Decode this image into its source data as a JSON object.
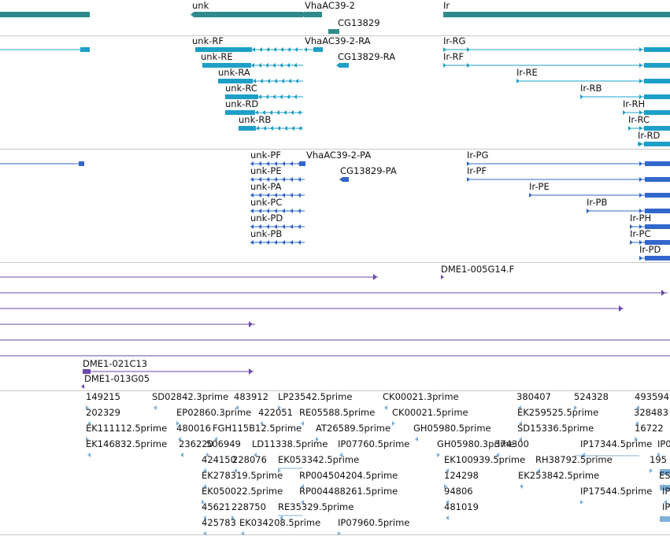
{
  "colors": {
    "gene": "#2e8b8b",
    "mrna": "#1e9fc8",
    "protein": "#3366cc",
    "clone": "#6a4aa8",
    "est": "#7fb0d8",
    "separator": "#c8c8c8"
  },
  "genes": [
    {
      "name": "unk"
    },
    {
      "name": "VhaAC39-2"
    },
    {
      "name": "CG13829"
    },
    {
      "name": "Ir"
    }
  ],
  "transcripts": [
    "unk-RF",
    "unk-RE",
    "unk-RA",
    "unk-RC",
    "unk-RD",
    "unk-RB",
    "VhaAC39-2-RA",
    "CG13829-RA",
    "Ir-RG",
    "Ir-RF",
    "Ir-RE",
    "Ir-RB",
    "Ir-RH",
    "Ir-RC",
    "Ir-RD"
  ],
  "proteins": [
    "unk-PF",
    "unk-PE",
    "unk-PA",
    "unk-PC",
    "unk-PD",
    "unk-PB",
    "VhaAC39-2-PA",
    "CG13829-PA",
    "Ir-PG",
    "Ir-PF",
    "Ir-PE",
    "Ir-PB",
    "Ir-PH",
    "Ir-PC",
    "Ir-PD"
  ],
  "clones": [
    "DME1-005G14.F",
    "DME1-021C13",
    "DME1-013G05"
  ],
  "ests": [
    "149215",
    "SD02842.3prime",
    "483912",
    "LP23542.5prime",
    "CK00021.3prime",
    "380407",
    "524328",
    "493594",
    "202329",
    "EP02860.3prime",
    "422051",
    "RE05588.5prime",
    "CK00021.5prime",
    "EK259525.5prime",
    "328483",
    "EK111112.5prime",
    "480016",
    "FGH115B12.5prime",
    "AT26589.5prime",
    "GH05980.5prime",
    "SD15336.5prime",
    "16722",
    "EK146832.5prime",
    "236220",
    "506949",
    "LD11338.5prime",
    "IP07760.5prime",
    "GH05980.3prime",
    "374300",
    "IP17344.5prime",
    "IP0",
    "424150",
    "228076",
    "EK053342.5prime",
    "EK100939.5prime",
    "RH38792.5prime",
    "195",
    "EK278319.5prime",
    "RP004504204.5prime",
    "124298",
    "EK253842.5prime",
    "ES",
    "EK050022.5prime",
    "RP004488261.5prime",
    "94806",
    "IP17544.5prime",
    "IP",
    "45621",
    "228750",
    "RE35329.5prime",
    "481019",
    "IP",
    "425783",
    "EK034208.5prime",
    "IP07960.5prime"
  ]
}
